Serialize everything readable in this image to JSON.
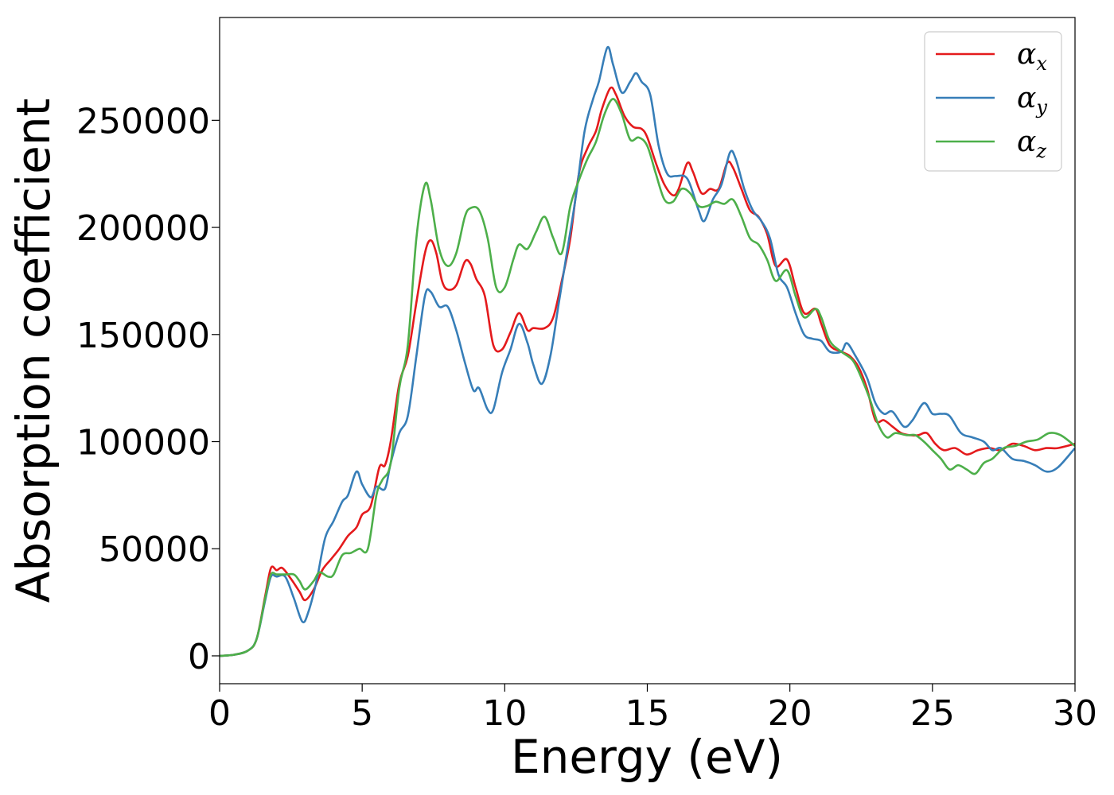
{
  "chart_data": {
    "type": "line",
    "title": "",
    "xlabel": "Energy (eV)",
    "ylabel": "Absorption coefficient",
    "xlim": [
      0,
      30
    ],
    "ylim": [
      -13000,
      298000
    ],
    "xticks": [
      0,
      5,
      10,
      15,
      20,
      25,
      30
    ],
    "xtick_labels": [
      "0",
      "5",
      "10",
      "15",
      "20",
      "25",
      "30"
    ],
    "yticks": [
      0,
      50000,
      100000,
      150000,
      200000,
      250000
    ],
    "ytick_labels": [
      "0",
      "50000",
      "100000",
      "150000",
      "200000",
      "250000"
    ],
    "grid": false,
    "legend_position": "top-right",
    "series": [
      {
        "name": "α",
        "subscript": "x",
        "color": "#e41a1c",
        "points": [
          [
            0,
            0
          ],
          [
            0.5,
            500
          ],
          [
            1,
            2500
          ],
          [
            1.3,
            8000
          ],
          [
            1.6,
            28000
          ],
          [
            1.8,
            41000
          ],
          [
            2.0,
            40000
          ],
          [
            2.2,
            41000
          ],
          [
            2.5,
            36000
          ],
          [
            2.8,
            30000
          ],
          [
            3.0,
            26000
          ],
          [
            3.3,
            31000
          ],
          [
            3.6,
            40000
          ],
          [
            3.9,
            45000
          ],
          [
            4.2,
            50000
          ],
          [
            4.5,
            56000
          ],
          [
            4.8,
            60000
          ],
          [
            5.0,
            66000
          ],
          [
            5.3,
            70000
          ],
          [
            5.6,
            88000
          ],
          [
            5.8,
            89000
          ],
          [
            6.0,
            100000
          ],
          [
            6.3,
            127000
          ],
          [
            6.6,
            140000
          ],
          [
            6.9,
            165000
          ],
          [
            7.2,
            188000
          ],
          [
            7.4,
            194000
          ],
          [
            7.6,
            188000
          ],
          [
            7.8,
            175000
          ],
          [
            8.0,
            171000
          ],
          [
            8.3,
            173000
          ],
          [
            8.6,
            184000
          ],
          [
            8.8,
            183000
          ],
          [
            9.0,
            176000
          ],
          [
            9.3,
            168000
          ],
          [
            9.6,
            145000
          ],
          [
            9.9,
            143000
          ],
          [
            10.2,
            151000
          ],
          [
            10.5,
            160000
          ],
          [
            10.8,
            152000
          ],
          [
            11.0,
            153000
          ],
          [
            11.4,
            153000
          ],
          [
            11.7,
            158000
          ],
          [
            12.0,
            175000
          ],
          [
            12.3,
            195000
          ],
          [
            12.6,
            225000
          ],
          [
            12.9,
            237000
          ],
          [
            13.2,
            245000
          ],
          [
            13.4,
            255000
          ],
          [
            13.7,
            265000
          ],
          [
            13.9,
            262000
          ],
          [
            14.2,
            252000
          ],
          [
            14.5,
            247000
          ],
          [
            14.8,
            246000
          ],
          [
            15.0,
            242000
          ],
          [
            15.3,
            230000
          ],
          [
            15.6,
            220000
          ],
          [
            15.9,
            215000
          ],
          [
            16.1,
            218000
          ],
          [
            16.4,
            230000
          ],
          [
            16.6,
            226000
          ],
          [
            16.9,
            216000
          ],
          [
            17.2,
            218000
          ],
          [
            17.5,
            218000
          ],
          [
            17.8,
            230000
          ],
          [
            18.0,
            228000
          ],
          [
            18.3,
            218000
          ],
          [
            18.6,
            208000
          ],
          [
            18.9,
            205000
          ],
          [
            19.2,
            197000
          ],
          [
            19.5,
            182000
          ],
          [
            19.9,
            185000
          ],
          [
            20.2,
            172000
          ],
          [
            20.5,
            160000
          ],
          [
            20.9,
            162000
          ],
          [
            21.1,
            155000
          ],
          [
            21.4,
            145000
          ],
          [
            21.8,
            142000
          ],
          [
            22.1,
            140000
          ],
          [
            22.4,
            135000
          ],
          [
            22.7,
            125000
          ],
          [
            23.0,
            110000
          ],
          [
            23.3,
            110000
          ],
          [
            23.6,
            107000
          ],
          [
            23.9,
            104000
          ],
          [
            24.2,
            103000
          ],
          [
            24.5,
            103000
          ],
          [
            24.8,
            104000
          ],
          [
            25.1,
            99000
          ],
          [
            25.4,
            96000
          ],
          [
            25.8,
            97000
          ],
          [
            26.2,
            94000
          ],
          [
            26.6,
            96000
          ],
          [
            27.0,
            97000
          ],
          [
            27.4,
            96000
          ],
          [
            27.8,
            99000
          ],
          [
            28.2,
            98000
          ],
          [
            28.6,
            96000
          ],
          [
            29.0,
            97000
          ],
          [
            29.4,
            97000
          ],
          [
            30.0,
            99000
          ]
        ]
      },
      {
        "name": "α",
        "subscript": "y",
        "color": "#377eb8",
        "points": [
          [
            0,
            0
          ],
          [
            0.5,
            500
          ],
          [
            1,
            2500
          ],
          [
            1.3,
            8000
          ],
          [
            1.6,
            26000
          ],
          [
            1.8,
            37000
          ],
          [
            2.0,
            37000
          ],
          [
            2.3,
            37000
          ],
          [
            2.6,
            27000
          ],
          [
            2.9,
            16000
          ],
          [
            3.1,
            20000
          ],
          [
            3.4,
            35000
          ],
          [
            3.7,
            55000
          ],
          [
            4.0,
            63000
          ],
          [
            4.3,
            72000
          ],
          [
            4.5,
            75000
          ],
          [
            4.8,
            86000
          ],
          [
            5.0,
            80000
          ],
          [
            5.3,
            74000
          ],
          [
            5.5,
            79000
          ],
          [
            5.8,
            78000
          ],
          [
            6.0,
            90000
          ],
          [
            6.3,
            104000
          ],
          [
            6.6,
            112000
          ],
          [
            6.9,
            140000
          ],
          [
            7.2,
            168000
          ],
          [
            7.4,
            170000
          ],
          [
            7.7,
            163000
          ],
          [
            8.0,
            163000
          ],
          [
            8.3,
            152000
          ],
          [
            8.6,
            137000
          ],
          [
            8.9,
            124000
          ],
          [
            9.1,
            125000
          ],
          [
            9.4,
            115000
          ],
          [
            9.6,
            115000
          ],
          [
            9.9,
            132000
          ],
          [
            10.2,
            143000
          ],
          [
            10.5,
            155000
          ],
          [
            10.8,
            146000
          ],
          [
            11.0,
            136000
          ],
          [
            11.3,
            127000
          ],
          [
            11.6,
            140000
          ],
          [
            11.9,
            165000
          ],
          [
            12.2,
            190000
          ],
          [
            12.5,
            215000
          ],
          [
            12.8,
            245000
          ],
          [
            13.1,
            260000
          ],
          [
            13.3,
            268000
          ],
          [
            13.6,
            284000
          ],
          [
            13.8,
            276000
          ],
          [
            14.1,
            263000
          ],
          [
            14.4,
            268000
          ],
          [
            14.6,
            272000
          ],
          [
            14.8,
            268000
          ],
          [
            15.1,
            262000
          ],
          [
            15.4,
            238000
          ],
          [
            15.7,
            225000
          ],
          [
            16.0,
            224000
          ],
          [
            16.3,
            224000
          ],
          [
            16.5,
            220000
          ],
          [
            16.8,
            208000
          ],
          [
            17.0,
            203000
          ],
          [
            17.3,
            213000
          ],
          [
            17.6,
            220000
          ],
          [
            17.9,
            235000
          ],
          [
            18.1,
            232000
          ],
          [
            18.4,
            218000
          ],
          [
            18.7,
            208000
          ],
          [
            19.0,
            203000
          ],
          [
            19.3,
            195000
          ],
          [
            19.6,
            178000
          ],
          [
            19.9,
            172000
          ],
          [
            20.2,
            160000
          ],
          [
            20.5,
            150000
          ],
          [
            20.8,
            148000
          ],
          [
            21.1,
            147000
          ],
          [
            21.4,
            142000
          ],
          [
            21.8,
            142000
          ],
          [
            22.0,
            146000
          ],
          [
            22.3,
            140000
          ],
          [
            22.7,
            130000
          ],
          [
            23.0,
            118000
          ],
          [
            23.3,
            113000
          ],
          [
            23.6,
            114000
          ],
          [
            24.0,
            107000
          ],
          [
            24.3,
            110000
          ],
          [
            24.7,
            118000
          ],
          [
            25.0,
            113000
          ],
          [
            25.3,
            113000
          ],
          [
            25.6,
            112000
          ],
          [
            26.0,
            104000
          ],
          [
            26.4,
            102000
          ],
          [
            26.8,
            100000
          ],
          [
            27.1,
            96000
          ],
          [
            27.4,
            97000
          ],
          [
            27.8,
            92000
          ],
          [
            28.2,
            91000
          ],
          [
            28.6,
            89000
          ],
          [
            29.0,
            86000
          ],
          [
            29.4,
            88000
          ],
          [
            30.0,
            97000
          ]
        ]
      },
      {
        "name": "α",
        "subscript": "z",
        "color": "#4daf4a",
        "points": [
          [
            0,
            0
          ],
          [
            0.5,
            500
          ],
          [
            1,
            2500
          ],
          [
            1.3,
            8000
          ],
          [
            1.6,
            27000
          ],
          [
            1.8,
            38000
          ],
          [
            2.0,
            38000
          ],
          [
            2.3,
            38000
          ],
          [
            2.6,
            38000
          ],
          [
            2.8,
            35000
          ],
          [
            3.0,
            31000
          ],
          [
            3.3,
            35000
          ],
          [
            3.5,
            39000
          ],
          [
            3.8,
            37000
          ],
          [
            4.0,
            38000
          ],
          [
            4.3,
            47000
          ],
          [
            4.6,
            48000
          ],
          [
            4.9,
            50000
          ],
          [
            5.2,
            50000
          ],
          [
            5.5,
            75000
          ],
          [
            5.7,
            82000
          ],
          [
            6.0,
            90000
          ],
          [
            6.3,
            125000
          ],
          [
            6.6,
            145000
          ],
          [
            6.9,
            195000
          ],
          [
            7.2,
            220000
          ],
          [
            7.4,
            213000
          ],
          [
            7.7,
            190000
          ],
          [
            8.0,
            182000
          ],
          [
            8.3,
            188000
          ],
          [
            8.6,
            205000
          ],
          [
            8.8,
            209000
          ],
          [
            9.1,
            208000
          ],
          [
            9.4,
            195000
          ],
          [
            9.7,
            172000
          ],
          [
            10.0,
            172000
          ],
          [
            10.3,
            185000
          ],
          [
            10.5,
            192000
          ],
          [
            10.8,
            190000
          ],
          [
            11.1,
            198000
          ],
          [
            11.4,
            205000
          ],
          [
            11.7,
            195000
          ],
          [
            12.0,
            188000
          ],
          [
            12.3,
            210000
          ],
          [
            12.6,
            222000
          ],
          [
            12.9,
            232000
          ],
          [
            13.2,
            240000
          ],
          [
            13.5,
            253000
          ],
          [
            13.8,
            260000
          ],
          [
            14.1,
            253000
          ],
          [
            14.4,
            241000
          ],
          [
            14.7,
            242000
          ],
          [
            15.0,
            238000
          ],
          [
            15.3,
            225000
          ],
          [
            15.6,
            213000
          ],
          [
            15.9,
            212000
          ],
          [
            16.2,
            218000
          ],
          [
            16.5,
            216000
          ],
          [
            16.8,
            210000
          ],
          [
            17.1,
            210000
          ],
          [
            17.4,
            212000
          ],
          [
            17.7,
            211000
          ],
          [
            18.0,
            213000
          ],
          [
            18.3,
            205000
          ],
          [
            18.6,
            195000
          ],
          [
            18.9,
            192000
          ],
          [
            19.2,
            185000
          ],
          [
            19.5,
            175000
          ],
          [
            19.9,
            180000
          ],
          [
            20.2,
            168000
          ],
          [
            20.5,
            158000
          ],
          [
            20.9,
            162000
          ],
          [
            21.1,
            158000
          ],
          [
            21.4,
            147000
          ],
          [
            21.8,
            142000
          ],
          [
            22.2,
            138000
          ],
          [
            22.5,
            130000
          ],
          [
            22.8,
            120000
          ],
          [
            23.1,
            108000
          ],
          [
            23.4,
            102000
          ],
          [
            23.7,
            104000
          ],
          [
            24.1,
            103000
          ],
          [
            24.4,
            103000
          ],
          [
            24.7,
            100000
          ],
          [
            25.0,
            96000
          ],
          [
            25.3,
            92000
          ],
          [
            25.6,
            87000
          ],
          [
            25.9,
            89000
          ],
          [
            26.2,
            87000
          ],
          [
            26.5,
            85000
          ],
          [
            26.8,
            90000
          ],
          [
            27.1,
            92000
          ],
          [
            27.5,
            97000
          ],
          [
            27.9,
            98000
          ],
          [
            28.3,
            100000
          ],
          [
            28.7,
            101000
          ],
          [
            29.1,
            104000
          ],
          [
            29.5,
            103000
          ],
          [
            30.0,
            98000
          ]
        ]
      }
    ]
  }
}
